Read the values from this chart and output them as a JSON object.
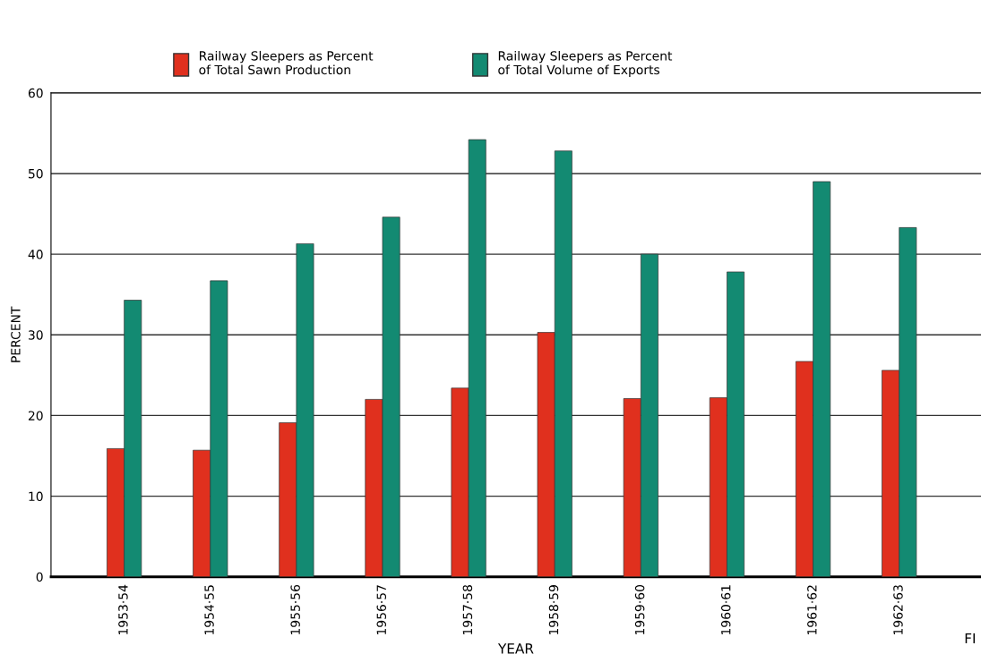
{
  "chart_data": {
    "type": "bar",
    "xlabel": "YEAR",
    "ylabel": "PERCENT",
    "categories": [
      "1953·54",
      "1954·55",
      "1955·56",
      "1956·57",
      "1957·58",
      "1958·59",
      "1959·60",
      "1960·61",
      "1961·62",
      "1962·63"
    ],
    "series": [
      {
        "name": "Railway Sleepers as Percent\nof Total Sawn Production",
        "color": "#e0301e",
        "values": [
          15.9,
          15.7,
          19.1,
          22.0,
          23.4,
          30.3,
          22.1,
          22.2,
          26.7,
          25.6
        ]
      },
      {
        "name": "Railway Sleepers as Percent\nof Total Volume of Exports",
        "color": "#138a72",
        "values": [
          34.3,
          36.7,
          41.3,
          44.6,
          54.2,
          52.8,
          40.0,
          37.8,
          49.0,
          43.3
        ]
      }
    ],
    "ylim": [
      0,
      60
    ],
    "yticks": [
      0,
      10,
      20,
      30,
      40,
      50,
      60
    ],
    "grid": "y",
    "legend": "top",
    "annotations": [
      "FI"
    ]
  }
}
